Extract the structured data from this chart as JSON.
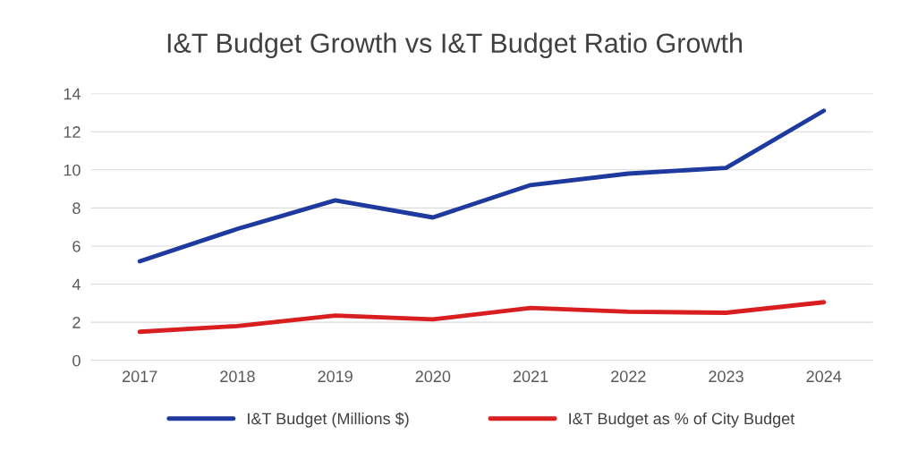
{
  "chart_data": {
    "type": "line",
    "title": "I&T Budget Growth vs I&T Budget Ratio Growth",
    "categories": [
      "2017",
      "2018",
      "2019",
      "2020",
      "2021",
      "2022",
      "2023",
      "2024"
    ],
    "series": [
      {
        "name": "I&T Budget (Millions $)",
        "color": "#1f3a9e",
        "values": [
          5.2,
          6.9,
          8.4,
          7.5,
          9.2,
          9.8,
          10.1,
          13.1
        ]
      },
      {
        "name": "I&T Budget as % of City Budget",
        "color": "#d81e1e",
        "values": [
          1.5,
          1.8,
          2.35,
          2.15,
          2.75,
          2.55,
          2.5,
          3.05
        ]
      }
    ],
    "ylim": [
      0,
      14
    ],
    "yticks": [
      0,
      2,
      4,
      6,
      8,
      10,
      12,
      14
    ],
    "grid": "y",
    "legend": "bottom",
    "marker": "none",
    "line_style": "solid"
  }
}
